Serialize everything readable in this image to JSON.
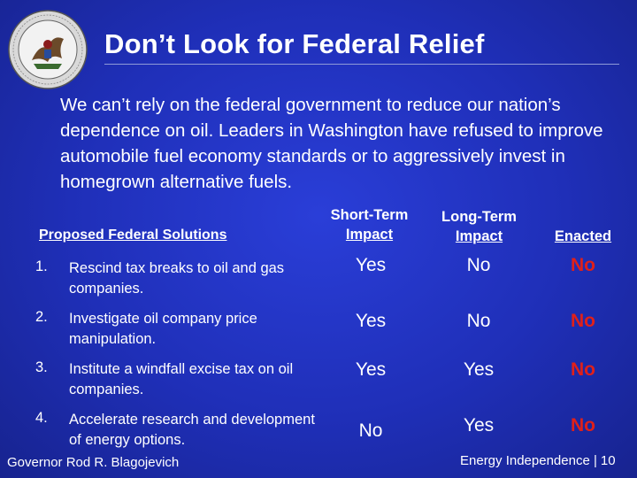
{
  "header": {
    "title": "Don’t Look for Federal Relief",
    "seal_icon": "illinois-state-seal",
    "seal_text_top": "SEAL OF THE STATE OF ILLINOIS",
    "seal_text_bottom": "AUG. 26th 1818"
  },
  "intro": "We can’t rely on the federal government to reduce our nation’s dependence on oil.  Leaders in Washington have refused to improve automobile fuel economy standards or to aggressively invest in homegrown alternative fuels.",
  "table": {
    "headers": {
      "solutions": "Proposed Federal Solutions",
      "short_term_line1": "Short-Term",
      "short_term_line2": "Impact",
      "long_term_line1": "Long-Term",
      "long_term_line2": "Impact",
      "enacted": "Enacted"
    },
    "rows": [
      {
        "num": "1.",
        "text": "Rescind tax breaks to oil and gas companies.",
        "short": "Yes",
        "long": "No",
        "enacted": "No"
      },
      {
        "num": "2.",
        "text": "Investigate oil company price manipulation.",
        "short": "Yes",
        "long": "No",
        "enacted": "No"
      },
      {
        "num": "3.",
        "text": "Institute a windfall excise tax on oil companies.",
        "short": "Yes",
        "long": "Yes",
        "enacted": "No"
      },
      {
        "num": "4.",
        "text": "Accelerate research and development of energy options.",
        "short": "No",
        "long": "Yes",
        "enacted": "No"
      }
    ]
  },
  "footer": {
    "left": "Governor Rod R. Blagojevich",
    "right": "Energy Independence |",
    "page": "10"
  },
  "colors": {
    "background": "#1f2fb8",
    "text": "#ffffff",
    "enacted_no": "#e0201a"
  }
}
